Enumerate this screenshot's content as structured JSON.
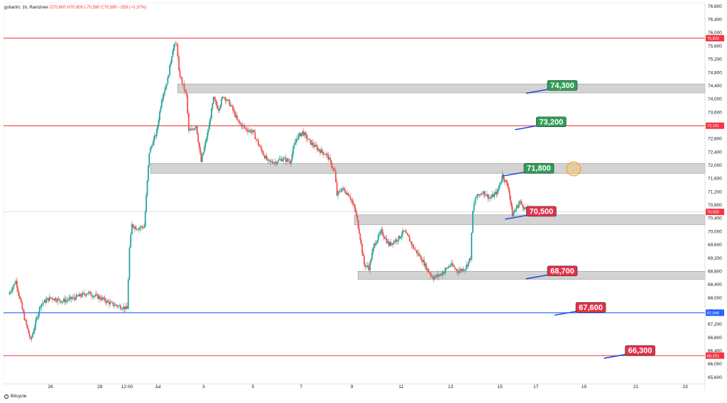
{
  "header": {
    "symbol": "gohar/irr, 1h, Ramzinex",
    "open": "O70,600",
    "high": "H70,600",
    "low": "L70,590",
    "close": "C70,590",
    "change": "−259 (−0.37%)"
  },
  "brand": {
    "name": "Bitcycle"
  },
  "chart_data": {
    "type": "candlestick",
    "ylim": [
      65600,
      76800
    ],
    "y_ticks": [
      "76,800",
      "76,400",
      "76,000",
      "75,600",
      "75,200",
      "74,800",
      "74,400",
      "74,000",
      "73,600",
      "73,200",
      "72,800",
      "72,400",
      "72,000",
      "71,600",
      "71,200",
      "70,800",
      "70,400",
      "70,000",
      "69,600",
      "69,200",
      "68,800",
      "68,400",
      "68,000",
      "67,600",
      "67,200",
      "66,800",
      "66,400",
      "66,000",
      "65,600"
    ],
    "x_ticks": [
      {
        "label": "26",
        "day": 26
      },
      {
        "label": "28",
        "day": 28
      },
      {
        "label": "12:00",
        "day": 29.1
      },
      {
        "label": "Jul",
        "day": 30.35
      },
      {
        "label": "3",
        "day": 32.2
      },
      {
        "label": "5",
        "day": 34.2
      },
      {
        "label": "7",
        "day": 36.15
      },
      {
        "label": "9",
        "day": 38.2
      },
      {
        "label": "11",
        "day": 40.2
      },
      {
        "label": "13",
        "day": 42.2
      },
      {
        "label": "15",
        "day": 44.2
      },
      {
        "label": "17",
        "day": 45.65
      },
      {
        "label": "19",
        "day": 47.6
      },
      {
        "label": "21",
        "day": 49.7
      },
      {
        "label": "23",
        "day": 51.7
      }
    ],
    "last_price": 70590,
    "last_price_label": "70,590",
    "horizontal_levels": [
      {
        "price": 75833,
        "label": "75,833",
        "color": "#f23645"
      },
      {
        "price": 73191,
        "label": "73,191",
        "color": "#f23645"
      },
      {
        "price": 67546,
        "label": "67,546",
        "color": "#2962ff"
      },
      {
        "price": 66251,
        "label": "66,251",
        "color": "#f23645"
      }
    ],
    "zones": [
      {
        "top": 74450,
        "bottom": 74180
      },
      {
        "top": 72050,
        "bottom": 71750
      },
      {
        "top": 70500,
        "bottom": 70200
      },
      {
        "top": 68800,
        "bottom": 68550
      }
    ],
    "callouts": [
      {
        "label": "74,300",
        "color": "#2e9e57",
        "price": 74300,
        "day": 46.35
      },
      {
        "label": "73,200",
        "color": "#2e9e57",
        "price": 73200,
        "day": 45.9
      },
      {
        "label": "71,800",
        "color": "#2e9e57",
        "price": 71800,
        "day": 45.4
      },
      {
        "label": "70,500",
        "color": "#e1334b",
        "price": 70500,
        "day": 45.5
      },
      {
        "label": "68,700",
        "color": "#e1334b",
        "price": 68700,
        "day": 46.35
      },
      {
        "label": "67,600",
        "color": "#e1334b",
        "price": 67600,
        "day": 47.5
      },
      {
        "label": "66,300",
        "color": "#e1334b",
        "price": 66300,
        "day": 49.5
      }
    ],
    "price_path": [
      [
        24.3,
        68100
      ],
      [
        24.6,
        68500
      ],
      [
        24.9,
        67500
      ],
      [
        25.2,
        66700
      ],
      [
        25.6,
        67800
      ],
      [
        26,
        68000
      ],
      [
        26.5,
        67900
      ],
      [
        27,
        68000
      ],
      [
        27.5,
        68150
      ],
      [
        28,
        68000
      ],
      [
        28.5,
        67800
      ],
      [
        29,
        67700
      ],
      [
        29.1,
        67650
      ],
      [
        29.2,
        69500
      ],
      [
        29.3,
        70200
      ],
      [
        29.5,
        70100
      ],
      [
        29.8,
        70150
      ],
      [
        30,
        72400
      ],
      [
        30.3,
        73000
      ],
      [
        30.5,
        74000
      ],
      [
        30.75,
        74600
      ],
      [
        30.95,
        75500
      ],
      [
        31.1,
        75700
      ],
      [
        31.2,
        74800
      ],
      [
        31.5,
        74100
      ],
      [
        31.6,
        73000
      ],
      [
        31.9,
        73200
      ],
      [
        32.1,
        72100
      ],
      [
        32.4,
        73100
      ],
      [
        32.6,
        74000
      ],
      [
        32.8,
        73700
      ],
      [
        33,
        74100
      ],
      [
        33.3,
        73800
      ],
      [
        33.6,
        73300
      ],
      [
        33.9,
        73100
      ],
      [
        34.2,
        73000
      ],
      [
        34.5,
        72500
      ],
      [
        34.8,
        72100
      ],
      [
        35.1,
        72100
      ],
      [
        35.4,
        72200
      ],
      [
        35.7,
        72100
      ],
      [
        35.95,
        72800
      ],
      [
        36.2,
        73000
      ],
      [
        36.5,
        72700
      ],
      [
        36.8,
        72500
      ],
      [
        37.2,
        72300
      ],
      [
        37.5,
        71800
      ],
      [
        37.6,
        71100
      ],
      [
        37.8,
        71300
      ],
      [
        38.1,
        71100
      ],
      [
        38.35,
        70600
      ],
      [
        38.5,
        70000
      ],
      [
        38.7,
        69000
      ],
      [
        38.9,
        68900
      ],
      [
        39.1,
        69600
      ],
      [
        39.4,
        70000
      ],
      [
        39.7,
        69600
      ],
      [
        39.9,
        69700
      ],
      [
        40.1,
        69800
      ],
      [
        40.3,
        70000
      ],
      [
        40.5,
        69800
      ],
      [
        40.7,
        69500
      ],
      [
        41,
        69200
      ],
      [
        41.3,
        68800
      ],
      [
        41.5,
        68600
      ],
      [
        41.8,
        68700
      ],
      [
        42.2,
        69000
      ],
      [
        42.5,
        68800
      ],
      [
        42.8,
        68900
      ],
      [
        43,
        69200
      ],
      [
        43.1,
        70600
      ],
      [
        43.2,
        71000
      ],
      [
        43.5,
        71200
      ],
      [
        43.8,
        71000
      ],
      [
        44.1,
        71200
      ],
      [
        44.3,
        71700
      ],
      [
        44.55,
        71300
      ],
      [
        44.7,
        70500
      ],
      [
        45,
        70900
      ],
      [
        45.2,
        70700
      ],
      [
        45.5,
        70600
      ],
      [
        45.6,
        70590
      ]
    ]
  }
}
